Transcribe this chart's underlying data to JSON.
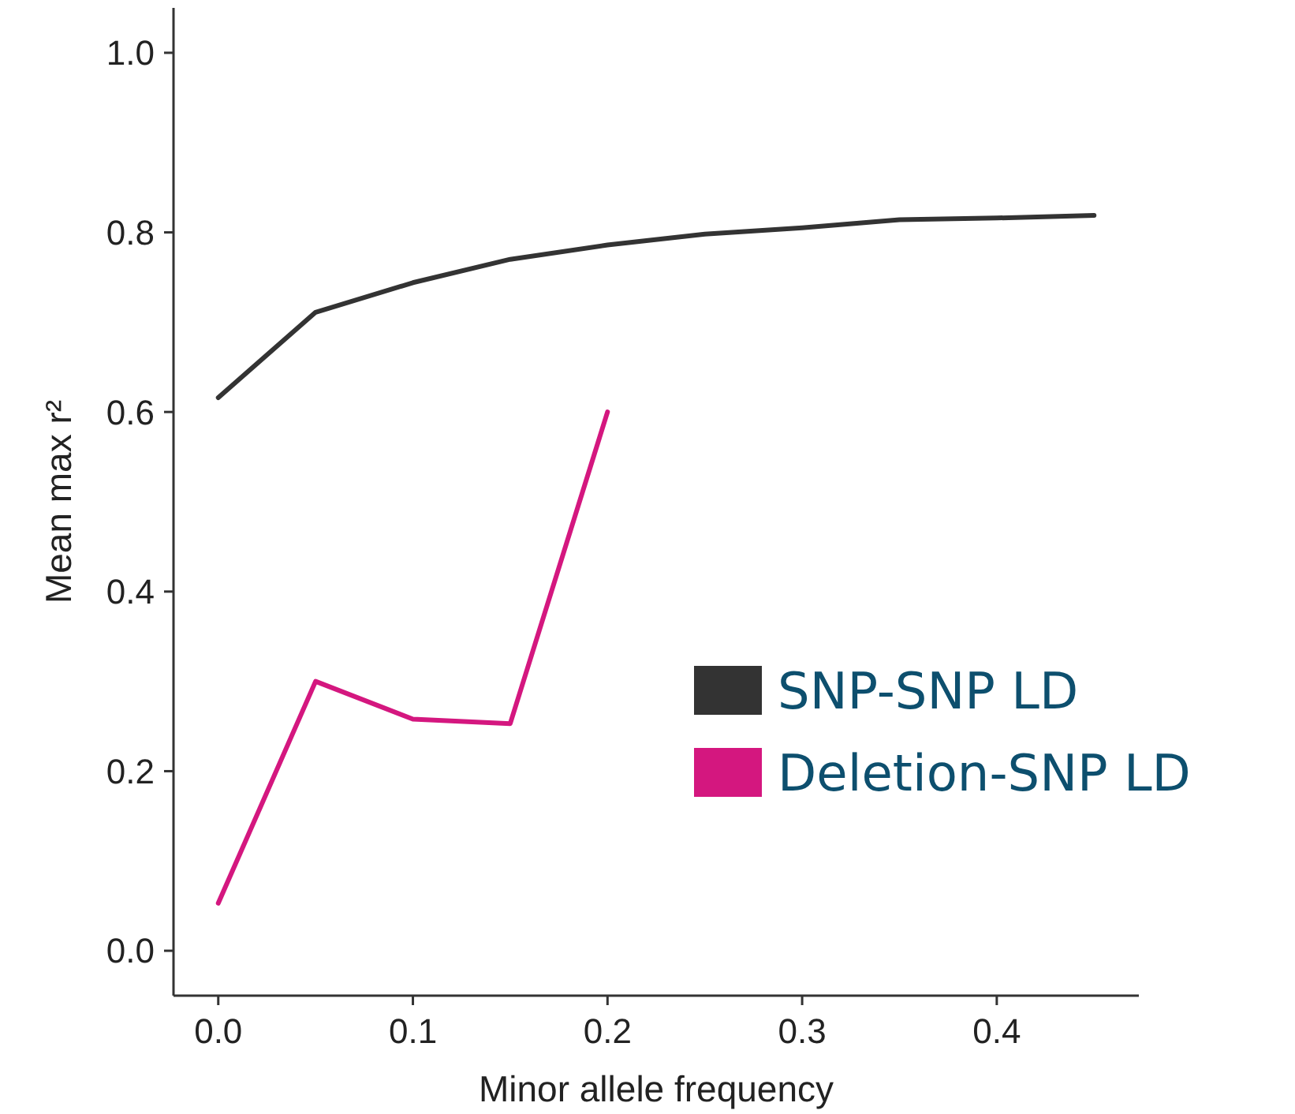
{
  "chart_data": {
    "type": "line",
    "xlabel": "Minor allele frequency",
    "ylabel": "Mean max r²",
    "x": [
      0,
      0.05,
      0.1,
      0.15,
      0.2,
      0.25,
      0.3,
      0.35,
      0.4,
      0.45
    ],
    "series": [
      {
        "name": "SNP-SNP LD",
        "color": "#333333",
        "values": [
          0.616,
          0.711,
          0.744,
          0.77,
          0.786,
          0.798,
          0.805,
          0.814,
          0.816,
          0.819
        ]
      },
      {
        "name": "Deletion-SNP LD",
        "color": "#d4177f",
        "x": [
          0,
          0.05,
          0.1,
          0.15,
          0.2
        ],
        "values": [
          0.053,
          0.3,
          0.258,
          0.253,
          0.6
        ]
      }
    ],
    "xlim": [
      -0.023,
      0.473
    ],
    "xticks": [
      {
        "value": 0,
        "label": "0.0"
      },
      0.1,
      0.2,
      0.3,
      0.4
    ],
    "ylim": [
      -0.05,
      1.05
    ],
    "yticks": [
      {
        "value": 0,
        "label": "0.0"
      },
      0.2,
      0.4,
      0.6,
      0.8,
      {
        "value": 1,
        "label": "1.0"
      }
    ],
    "grid": false,
    "legend": "bottom right",
    "marker": "none",
    "line_style": "solid"
  }
}
